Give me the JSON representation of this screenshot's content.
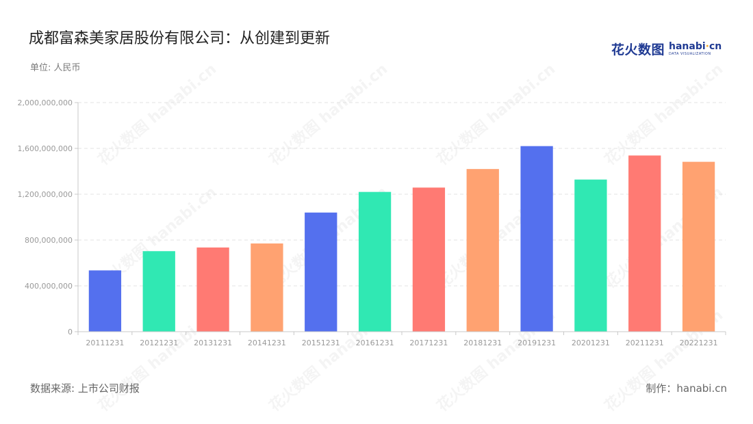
{
  "header": {
    "title": "成都富森美家居股份有限公司：从创建到更新",
    "unit": "单位: 人民币"
  },
  "logo": {
    "cn_text": "花火数图",
    "en_text_a": "hanabi",
    "en_dot": "·",
    "en_text_b": "cn",
    "en_sub": "DATA VISUALIZATION"
  },
  "footer": {
    "source": "数据来源: 上市公司财报",
    "credit": "制作：hanabi.cn"
  },
  "watermark": "花火数图 hanabi.cn",
  "chart_data": {
    "type": "bar",
    "title": "成都富森美家居股份有限公司：从创建到更新",
    "xlabel": "",
    "ylabel": "",
    "categories": [
      "20111231",
      "20121231",
      "20131231",
      "20141231",
      "20151231",
      "20161231",
      "20171231",
      "20181231",
      "20191231",
      "20201231",
      "20211231",
      "20221231"
    ],
    "values": [
      535000000,
      703000000,
      735000000,
      770000000,
      1040000000,
      1220000000,
      1258000000,
      1420000000,
      1620000000,
      1328000000,
      1538000000,
      1483000000
    ],
    "colors": [
      "#5470ee",
      "#30e8b3",
      "#ff7a73",
      "#ffa271",
      "#5470ee",
      "#30e8b3",
      "#ff7a73",
      "#ffa271",
      "#5470ee",
      "#30e8b3",
      "#ff7a73",
      "#ffa271"
    ],
    "ylim": [
      0,
      2000000000
    ],
    "yticks": [
      0,
      400000000,
      800000000,
      1200000000,
      1600000000,
      2000000000
    ],
    "ytick_labels": [
      "0",
      "400,000,000",
      "800,000,000",
      "1,200,000,000",
      "1,600,000,000",
      "2,000,000,000"
    ],
    "grid": true,
    "axis_color": "#c8c8c8",
    "grid_color": "#e3e3e3",
    "tick_label_color": "#999999"
  }
}
